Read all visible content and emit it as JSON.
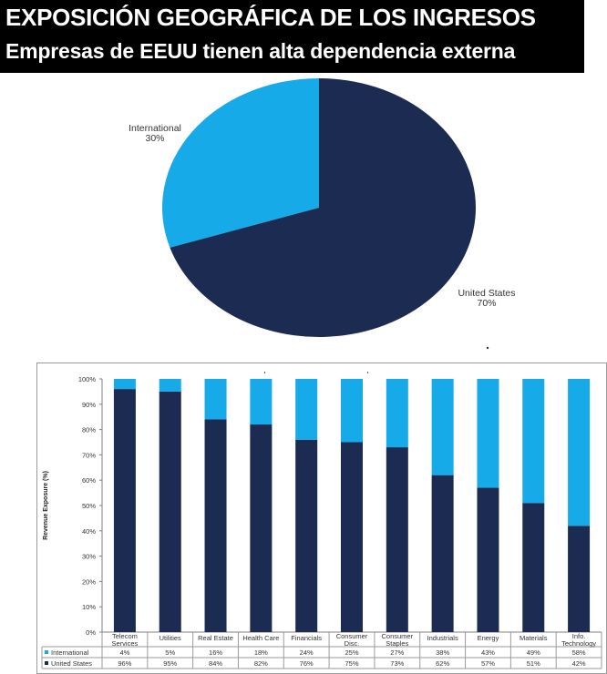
{
  "header": {
    "title": "EXPOSICIÓN GEOGRÁFICA DE LOS INGRESOS",
    "subtitle": "Empresas de EEUU tienen alta dependencia externa"
  },
  "colors": {
    "us": "#1b2b52",
    "international": "#17aae8",
    "header_bg": "#000000",
    "header_text": "#ffffff"
  },
  "chart_data": [
    {
      "type": "pie",
      "slices": [
        {
          "label": "International",
          "value": 30,
          "value_label": "30%"
        },
        {
          "label": "United States",
          "value": 70,
          "value_label": "70%"
        }
      ]
    },
    {
      "type": "bar",
      "stacked": true,
      "ylabel": "Revenue Exposure (%)",
      "ylim": [
        0,
        100
      ],
      "yticks": [
        "0%",
        "10%",
        "20%",
        "30%",
        "40%",
        "50%",
        "60%",
        "70%",
        "80%",
        "90%",
        "100%"
      ],
      "categories": [
        [
          "Telecom",
          "Services"
        ],
        [
          "Utilities"
        ],
        [
          "Real Estate"
        ],
        [
          "Health Care"
        ],
        [
          "Financials"
        ],
        [
          "Consumer",
          "Disc."
        ],
        [
          "Consumer",
          "Staples"
        ],
        [
          "Industrials"
        ],
        [
          "Energy"
        ],
        [
          "Materials"
        ],
        [
          "Info.",
          "Technology"
        ]
      ],
      "series": [
        {
          "name": "United States",
          "key": "us",
          "values": [
            96,
            95,
            84,
            82,
            76,
            75,
            73,
            62,
            57,
            51,
            42
          ],
          "labels": [
            "96%",
            "95%",
            "84%",
            "82%",
            "76%",
            "75%",
            "73%",
            "62%",
            "57%",
            "51%",
            "42%"
          ]
        },
        {
          "name": "International",
          "key": "international",
          "values": [
            4,
            5,
            16,
            18,
            24,
            25,
            27,
            38,
            43,
            49,
            58
          ],
          "labels": [
            "4%",
            "5%",
            "16%",
            "18%",
            "24%",
            "25%",
            "27%",
            "38%",
            "43%",
            "49%",
            "58%"
          ]
        }
      ]
    }
  ]
}
